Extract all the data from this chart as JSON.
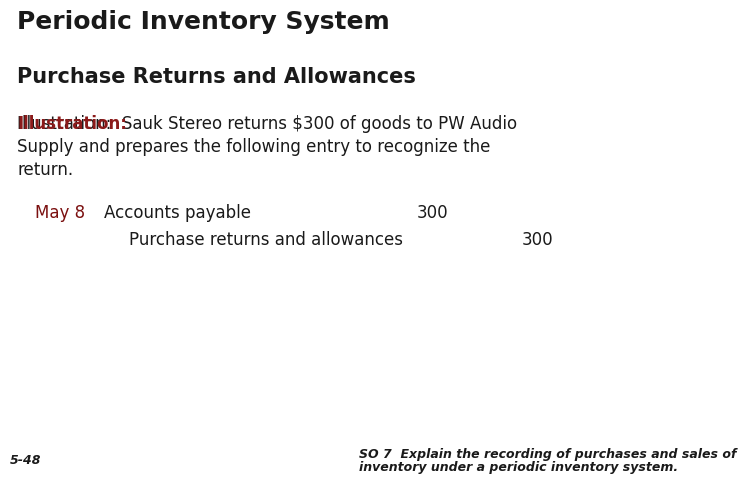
{
  "bg_color": "#ffffff",
  "title": "Periodic Inventory System",
  "title_color": "#1a1a1a",
  "title_fontsize": 18,
  "divider_color": "#7B1010",
  "subtitle": "Purchase Returns and Allowances",
  "subtitle_color": "#1a1a1a",
  "subtitle_fontsize": 15,
  "illustration_label": "Illustration:",
  "illustration_label_color": "#8B1A1A",
  "illustration_fontsize": 12,
  "illus_line1_after_label": "  Sauk Stereo returns $300 of goods to PW Audio",
  "illus_line2": "Supply and prepares the following entry to recognize the",
  "illus_line3": "return.",
  "date_label": "May 8",
  "date_color": "#7B1010",
  "date_fontsize": 12,
  "entry_fontsize": 12,
  "entry_row1_account": "Accounts payable",
  "entry_row1_debit": "300",
  "entry_row2_account": "Purchase returns and allowances",
  "entry_row2_credit": "300",
  "footer_left": "5-48",
  "footer_right_line1": "SO 7  Explain the recording of purchases and sales of",
  "footer_right_line2": "inventory under a periodic inventory system.",
  "footer_fontsize": 9
}
